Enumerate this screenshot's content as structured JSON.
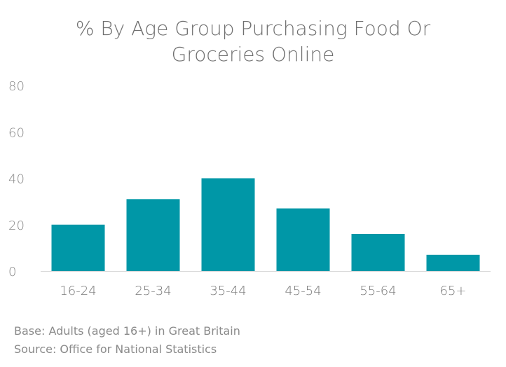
{
  "chart_data": {
    "type": "bar",
    "title_lines": [
      "% By Age Group Purchasing Food Or",
      "Groceries Online"
    ],
    "categories": [
      "16-24",
      "25-34",
      "35-44",
      "45-54",
      "55-64",
      "65+"
    ],
    "values": [
      20,
      31,
      40,
      27,
      16,
      7
    ],
    "ylim": [
      0,
      80
    ],
    "yticks": [
      "0",
      "20",
      "40",
      "60",
      "80"
    ],
    "grid": false,
    "legend": "none",
    "bar_color": "#0097a7"
  },
  "footnotes": {
    "base": "Base: Adults (aged 16+) in Great Britain",
    "source": "Source: Office for National Statistics"
  }
}
